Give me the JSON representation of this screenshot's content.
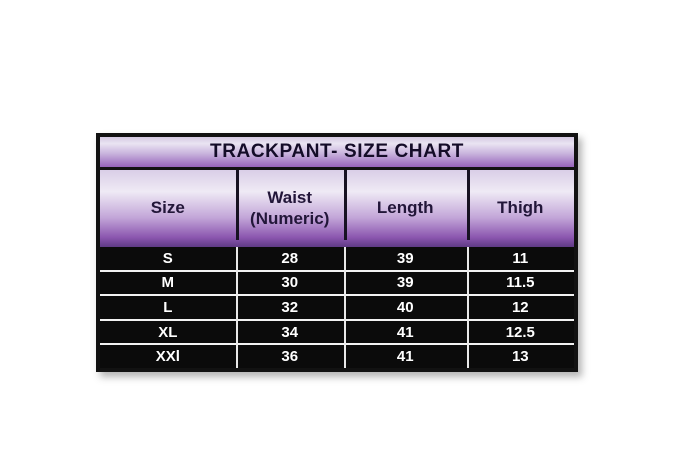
{
  "title": "TRACKPANT- SIZE CHART",
  "table": {
    "header": {
      "size": "Size",
      "waist_line1": "Waist",
      "waist_line2": "(Numeric)",
      "length": "Length",
      "thigh": "Thigh"
    },
    "rows": [
      {
        "size": "S",
        "waist": "28",
        "length": "39",
        "thigh": "11"
      },
      {
        "size": "M",
        "waist": "30",
        "length": "39",
        "thigh": "11.5"
      },
      {
        "size": "L",
        "waist": "32",
        "length": "40",
        "thigh": "12"
      },
      {
        "size": "XL",
        "waist": "34",
        "length": "41",
        "thigh": "12.5"
      },
      {
        "size": "XXl",
        "waist": "36",
        "length": "41",
        "thigh": "13"
      }
    ]
  },
  "colors": {
    "gradient_light": "#eae4f2",
    "gradient_purple": "#8a55ae",
    "gradient_deep_purple": "#5f3a85",
    "row_background": "#0b0b0b",
    "row_text": "#ffffff",
    "border": "#121212",
    "title_text": "#140c28"
  },
  "chart_data": {
    "type": "table",
    "title": "TRACKPANT- SIZE CHART",
    "columns": [
      "Size",
      "Waist (Numeric)",
      "Length",
      "Thigh"
    ],
    "rows": [
      [
        "S",
        28,
        39,
        11
      ],
      [
        "M",
        30,
        39,
        11.5
      ],
      [
        "L",
        32,
        40,
        12
      ],
      [
        "XL",
        34,
        41,
        12.5
      ],
      [
        "XXl",
        36,
        41,
        13
      ]
    ]
  }
}
